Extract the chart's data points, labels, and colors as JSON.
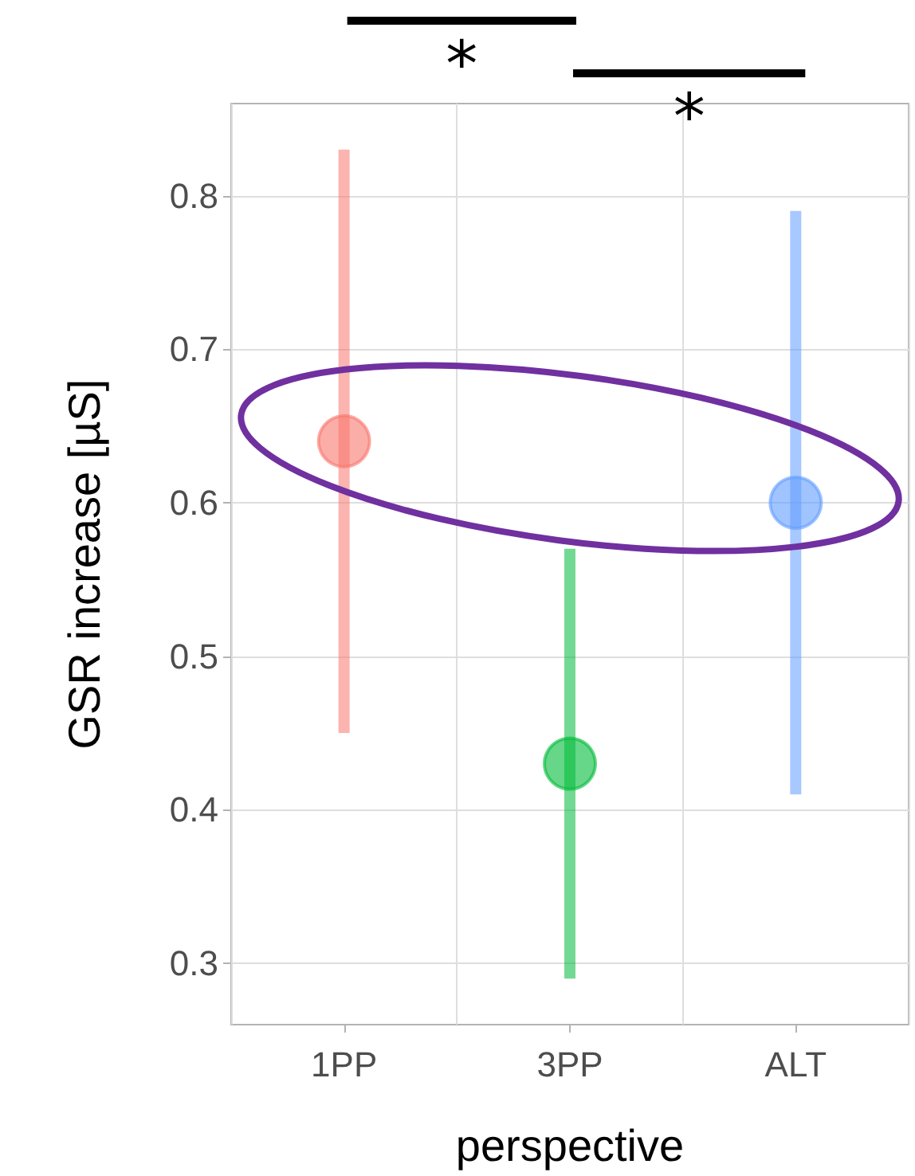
{
  "chart_data": {
    "type": "scatter",
    "xlabel": "perspective",
    "ylabel": "GSR increase [µS]",
    "categories": [
      "1PP",
      "3PP",
      "ALT"
    ],
    "values": [
      0.64,
      0.43,
      0.6
    ],
    "colors": [
      "#f8766d",
      "#00ba38",
      "#619cff"
    ],
    "errors": [
      [
        0.45,
        0.83
      ],
      [
        0.29,
        0.57
      ],
      [
        0.41,
        0.79
      ]
    ],
    "ylim": [
      0.26,
      0.86
    ],
    "yticks": [
      0.3,
      0.4,
      0.5,
      0.6,
      0.7,
      0.8
    ],
    "grid": true,
    "marker": "circle",
    "annotations": [
      "*",
      "*"
    ]
  }
}
